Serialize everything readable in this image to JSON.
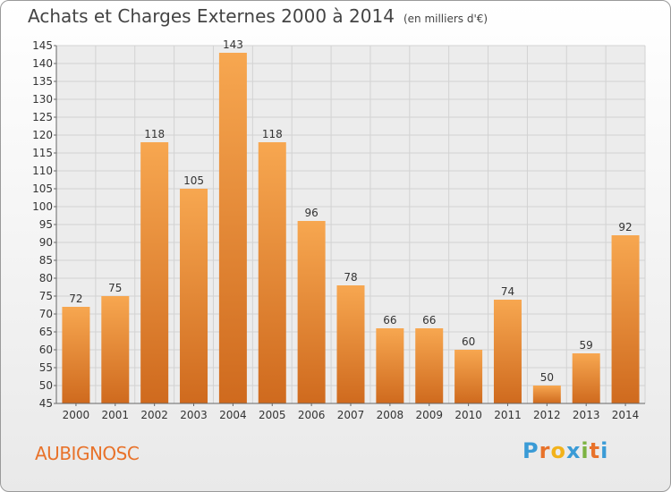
{
  "title": "Achats et Charges Externes 2000 à 2014",
  "unit": "(en milliers d'€)",
  "commune": "AUBIGNOSC",
  "logo": {
    "letters": [
      "P",
      "r",
      "o",
      "x",
      "i",
      "t",
      "i"
    ],
    "colors": [
      "#3a9bd6",
      "#e8722a",
      "#f2b21b",
      "#3a9bd6",
      "#7cb342",
      "#e8722a",
      "#3a9bd6"
    ]
  },
  "chart_data": {
    "type": "bar",
    "categories": [
      "2000",
      "2001",
      "2002",
      "2003",
      "2004",
      "2005",
      "2006",
      "2007",
      "2008",
      "2009",
      "2010",
      "2011",
      "2012",
      "2013",
      "2014"
    ],
    "values": [
      72,
      75,
      118,
      105,
      143,
      118,
      96,
      78,
      66,
      66,
      60,
      74,
      50,
      59,
      92
    ],
    "ylim": [
      45,
      145
    ],
    "yticks": [
      45,
      50,
      55,
      60,
      65,
      70,
      75,
      80,
      85,
      90,
      95,
      100,
      105,
      110,
      115,
      120,
      125,
      130,
      135,
      140,
      145
    ],
    "grid": true,
    "bar_color": "#f0923a"
  }
}
